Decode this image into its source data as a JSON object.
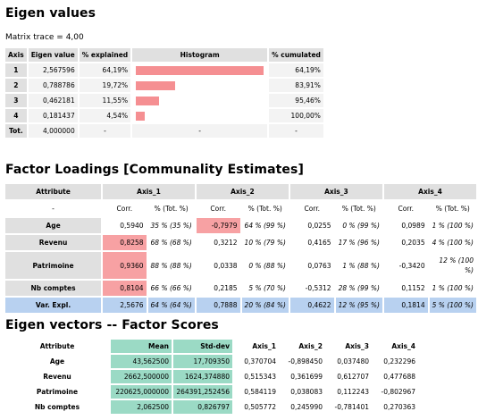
{
  "eigen": {
    "title": "Eigen values",
    "trace_label": "Matrix trace = 4,00",
    "headers": [
      "Axis",
      "Eigen value",
      "% explained",
      "Histogram",
      "% cumulated"
    ],
    "rows": [
      {
        "axis": "1",
        "value": "2,567596",
        "explained": "64,19%",
        "pct": 64.19,
        "cumulated": "64,19%"
      },
      {
        "axis": "2",
        "value": "0,788786",
        "explained": "19,72%",
        "pct": 19.72,
        "cumulated": "83,91%"
      },
      {
        "axis": "3",
        "value": "0,462181",
        "explained": "11,55%",
        "pct": 11.55,
        "cumulated": "95,46%"
      },
      {
        "axis": "4",
        "value": "0,181437",
        "explained": "4,54%",
        "pct": 4.54,
        "cumulated": "100,00%"
      }
    ],
    "total": {
      "label": "Tot.",
      "value": "4,000000",
      "explained": "-",
      "histogram": "-",
      "cumulated": "-"
    }
  },
  "loadings": {
    "title": "Factor Loadings [Communality Estimates]",
    "headers": [
      "Attribute",
      "Axis_1",
      "Axis_2",
      "Axis_3",
      "Axis_4"
    ],
    "subheaders": [
      "-",
      "Corr.",
      "% (Tot. %)",
      "Corr.",
      "% (Tot. %)",
      "Corr.",
      "% (Tot. %)",
      "Corr.",
      "% (Tot. %)"
    ],
    "rows": [
      {
        "attr": "Age",
        "c1": "0,5940",
        "p1": "35 % (35 %)",
        "c2": "-0,7979",
        "p2": "64 % (99 %)",
        "c3": "0,0255",
        "p3": "0 % (99 %)",
        "c4": "0,0989",
        "p4": "1 % (100 %)"
      },
      {
        "attr": "Revenu",
        "c1": "0,8258",
        "p1": "68 % (68 %)",
        "c2": "0,3212",
        "p2": "10 % (79 %)",
        "c3": "0,4165",
        "p3": "17 % (96 %)",
        "c4": "0,2035",
        "p4": "4 % (100 %)"
      },
      {
        "attr": "Patrimoine",
        "c1": "0,9360",
        "p1": "88 % (88 %)",
        "c2": "0,0338",
        "p2": "0 % (88 %)",
        "c3": "0,0763",
        "p3": "1 % (88 %)",
        "c4": "-0,3420",
        "p4a": "12 % (100",
        "p4b": "%)"
      },
      {
        "attr": "Nb comptes",
        "c1": "0,8104",
        "p1": "66 % (66 %)",
        "c2": "0,2185",
        "p2": "5 % (70 %)",
        "c3": "-0,5312",
        "p3": "28 % (99 %)",
        "c4": "0,1152",
        "p4": "1 % (100 %)"
      }
    ],
    "var": {
      "attr": "Var. Expl.",
      "c1": "2,5676",
      "p1": "64 % (64 %)",
      "c2": "0,7888",
      "p2": "20 % (84 %)",
      "c3": "0,4622",
      "p3": "12 % (95 %)",
      "c4": "0,1814",
      "p4": "5 % (100 %)"
    }
  },
  "vectors": {
    "title": "Eigen vectors -- Factor Scores",
    "headers": [
      "Attribute",
      "Mean",
      "Std-dev",
      "Axis_1",
      "Axis_2",
      "Axis_3",
      "Axis_4"
    ],
    "rows": [
      {
        "attr": "Age",
        "mean": "43,562500",
        "std": "17,709350",
        "a1": "0,370704",
        "a2": "-0,898450",
        "a3": "0,037480",
        "a4": "0,232296"
      },
      {
        "attr": "Revenu",
        "mean": "2662,500000",
        "std": "1624,374880",
        "a1": "0,515343",
        "a2": "0,361699",
        "a3": "0,612707",
        "a4": "0,477688"
      },
      {
        "attr": "Patrimoine",
        "mean": "220625,000000",
        "std": "264391,252456",
        "a1": "0,584119",
        "a2": "0,038083",
        "a3": "0,112243",
        "a4": "-0,802967"
      },
      {
        "attr": "Nb comptes",
        "mean": "2,062500",
        "std": "0,826797",
        "a1": "0,505772",
        "a2": "0,245990",
        "a3": "-0,781401",
        "a4": "0,270363"
      }
    ]
  }
}
